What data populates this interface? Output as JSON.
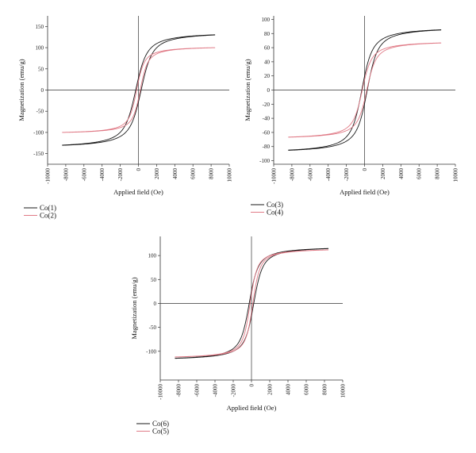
{
  "colors": {
    "black_series": "#1a1a1a",
    "pink_series": "#e07a86",
    "axis": "#333333"
  },
  "chart_data": [
    {
      "type": "line",
      "xlabel": "Applied field (Oe)",
      "ylabel": "Magnetization (emu/g)",
      "xlim": [
        -10000,
        10000
      ],
      "ylim": [
        -175,
        175
      ],
      "xticks": [
        -10000,
        -8000,
        -6000,
        -4000,
        -2000,
        0,
        2000,
        4000,
        6000,
        8000,
        10000
      ],
      "yticks": [
        -150,
        -100,
        -50,
        0,
        50,
        100,
        150
      ],
      "grid": false,
      "legend_position": "below-left",
      "series": [
        {
          "name": "Co(1)",
          "color": "#1a1a1a",
          "ms": 138,
          "coercivity": 300,
          "h_half": 1900,
          "x_range": [
            -8400,
            8400
          ]
        },
        {
          "name": "Co(2)",
          "color": "#e07a86",
          "ms": 104,
          "coercivity": 200,
          "h_half": 1300,
          "x_range": [
            -8400,
            8400
          ]
        }
      ]
    },
    {
      "type": "line",
      "xlabel": "Applied field (Oe)",
      "ylabel": "Magnetization (emu/g)",
      "xlim": [
        -10000,
        10000
      ],
      "ylim": [
        -105,
        105
      ],
      "xticks": [
        -10000,
        -8000,
        -6000,
        -4000,
        -2000,
        0,
        2000,
        4000,
        6000,
        8000,
        10000
      ],
      "yticks": [
        -100,
        -80,
        -60,
        -40,
        -20,
        0,
        20,
        40,
        60,
        80,
        100
      ],
      "grid": false,
      "legend_position": "below-left",
      "series": [
        {
          "name": "Co(3)",
          "color": "#1a1a1a",
          "ms": 90,
          "coercivity": 300,
          "h_half": 1800,
          "x_range": [
            -8400,
            8400
          ]
        },
        {
          "name": "Co(4)",
          "color": "#e07a86",
          "ms": 70,
          "coercivity": 250,
          "h_half": 1600,
          "x_range": [
            -8400,
            8400
          ]
        }
      ]
    },
    {
      "type": "line",
      "xlabel": "Applied field (Oe)",
      "ylabel": "Magnetization (emu/g)",
      "xlim": [
        -10000,
        10000
      ],
      "ylim": [
        -160,
        140
      ],
      "xticks": [
        -10000,
        -8000,
        -6000,
        -4000,
        -2000,
        0,
        2000,
        4000,
        6000,
        8000,
        10000
      ],
      "yticks": [
        -100,
        -50,
        0,
        50,
        100
      ],
      "grid": false,
      "legend_position": "below-left",
      "series": [
        {
          "name": "Co(6)",
          "color": "#1a1a1a",
          "ms": 120,
          "coercivity": 250,
          "h_half": 1500,
          "x_range": [
            -8400,
            8400
          ]
        },
        {
          "name": "Co(5)",
          "color": "#e07a86",
          "ms": 116,
          "coercivity": 150,
          "h_half": 1200,
          "x_range": [
            -8400,
            8400
          ]
        }
      ]
    }
  ]
}
